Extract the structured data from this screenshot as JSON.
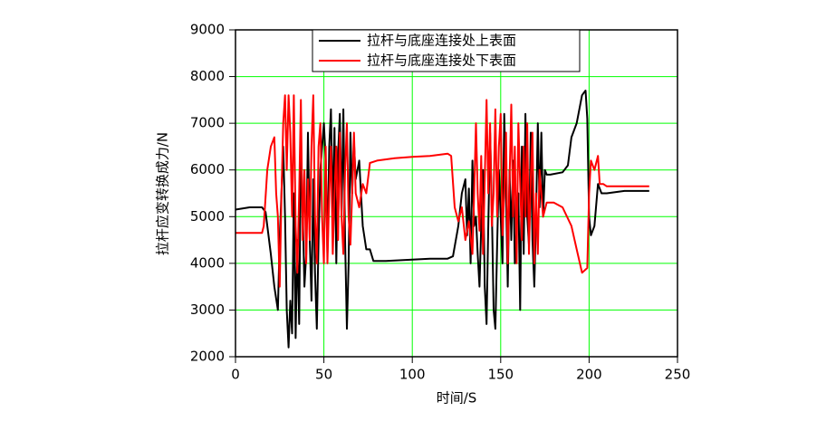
{
  "chart_data": {
    "type": "line",
    "xlabel": "时间/S",
    "ylabel": "拉杆应变转换成力/N",
    "xlim": [
      0,
      250
    ],
    "xticks": [
      0,
      50,
      100,
      150,
      200,
      250
    ],
    "ylim": [
      2000,
      9000
    ],
    "yticks": [
      2000,
      3000,
      4000,
      5000,
      6000,
      7000,
      8000,
      9000
    ],
    "grid": true,
    "grid_color": "#00ff00",
    "legend": "top",
    "series": [
      {
        "name": "拉杆与底座连接处上表面",
        "color": "#000000",
        "x": [
          0,
          8,
          15,
          17,
          20,
          22,
          24,
          25,
          27,
          28,
          29,
          30,
          31,
          32,
          33,
          34,
          35,
          36,
          37,
          38,
          39,
          40,
          41,
          42,
          43,
          44,
          45,
          46,
          47,
          48,
          50,
          51,
          52,
          53,
          54,
          55,
          56,
          57,
          58,
          59,
          60,
          61,
          62,
          63,
          64,
          65,
          66,
          67,
          68,
          70,
          72,
          74,
          76,
          78,
          85,
          100,
          110,
          120,
          123,
          126,
          128,
          130,
          131,
          132,
          133,
          134,
          135,
          136,
          137,
          138,
          139,
          140,
          141,
          142,
          143,
          144,
          145,
          146,
          147,
          148,
          149,
          150,
          151,
          152,
          153,
          154,
          155,
          156,
          157,
          158,
          160,
          161,
          162,
          163,
          164,
          165,
          166,
          167,
          168,
          169,
          170,
          171,
          172,
          173,
          174,
          175,
          176,
          178,
          185,
          188,
          190,
          193,
          196,
          198,
          199,
          200,
          201,
          203,
          205,
          207,
          210,
          220,
          234
        ],
        "values": [
          5150,
          5200,
          5200,
          5100,
          4200,
          3500,
          3000,
          4500,
          6500,
          5000,
          3000,
          2200,
          3200,
          2500,
          5500,
          2400,
          4500,
          2700,
          6500,
          5200,
          3500,
          4200,
          6800,
          4500,
          3200,
          5800,
          3800,
          2600,
          4500,
          6000,
          7000,
          6200,
          4200,
          6500,
          7300,
          5000,
          6900,
          4000,
          6300,
          7200,
          5000,
          7300,
          4500,
          2600,
          4000,
          6800,
          5500,
          6600,
          5800,
          6200,
          4800,
          4300,
          4300,
          4050,
          4050,
          4080,
          4100,
          4100,
          4150,
          4800,
          5500,
          5800,
          4600,
          5600,
          4000,
          6200,
          4800,
          5000,
          4200,
          3500,
          4800,
          6000,
          3500,
          2700,
          4800,
          6800,
          5200,
          3000,
          2600,
          4400,
          6000,
          5000,
          4000,
          7200,
          5500,
          3500,
          6000,
          4500,
          6200,
          4000,
          5500,
          3000,
          6500,
          4200,
          7200,
          5000,
          4400,
          6800,
          4500,
          3500,
          5000,
          7000,
          5200,
          6800,
          5000,
          6000,
          5900,
          5900,
          5950,
          6100,
          6700,
          7000,
          7600,
          7700,
          7100,
          5000,
          4600,
          4800,
          5700,
          5500,
          5500,
          5550,
          5550
        ]
      },
      {
        "name": "拉杆与底座连接处下表面",
        "color": "#ff0000",
        "x": [
          0,
          8,
          15,
          16,
          18,
          20,
          22,
          23,
          24,
          25,
          26,
          27,
          28,
          29,
          30,
          31,
          32,
          33,
          34,
          35,
          36,
          37,
          38,
          39,
          40,
          41,
          42,
          43,
          44,
          45,
          46,
          47,
          48,
          49,
          50,
          51,
          52,
          53,
          54,
          55,
          56,
          57,
          58,
          59,
          60,
          61,
          62,
          63,
          64,
          65,
          66,
          67,
          68,
          70,
          72,
          74,
          76,
          80,
          90,
          100,
          110,
          120,
          122,
          124,
          126,
          128,
          130,
          132,
          134,
          135,
          136,
          137,
          138,
          139,
          140,
          141,
          142,
          143,
          144,
          145,
          146,
          147,
          148,
          149,
          150,
          151,
          152,
          153,
          154,
          155,
          156,
          157,
          158,
          159,
          160,
          162,
          163,
          164,
          165,
          166,
          167,
          168,
          169,
          170,
          171,
          172,
          174,
          176,
          180,
          185,
          190,
          193,
          196,
          199,
          200,
          201,
          203,
          205,
          206,
          208,
          210,
          220,
          234
        ],
        "values": [
          4650,
          4650,
          4650,
          4800,
          6000,
          6500,
          6700,
          5500,
          5000,
          3500,
          5500,
          7000,
          7600,
          6000,
          7600,
          6800,
          5000,
          7600,
          4800,
          3800,
          5500,
          7500,
          4500,
          6000,
          4000,
          5800,
          4500,
          6500,
          7600,
          5000,
          4000,
          6500,
          7000,
          5000,
          4000,
          6500,
          4000,
          5500,
          6500,
          4200,
          5500,
          6500,
          4500,
          6800,
          5000,
          4200,
          6000,
          7000,
          5000,
          4400,
          5500,
          6800,
          5500,
          5200,
          5700,
          5500,
          6150,
          6200,
          6250,
          6280,
          6300,
          6350,
          6300,
          5200,
          4900,
          5200,
          4500,
          4900,
          4200,
          5500,
          7000,
          5500,
          4700,
          6300,
          4200,
          5800,
          7500,
          5500,
          7000,
          4800,
          5500,
          7300,
          5000,
          6500,
          7200,
          4600,
          5500,
          6800,
          4000,
          5800,
          7400,
          5000,
          6500,
          4000,
          7000,
          4500,
          6500,
          5000,
          7000,
          4200,
          5800,
          6800,
          4000,
          5500,
          4200,
          6000,
          5000,
          5300,
          5300,
          5200,
          4800,
          4300,
          3800,
          3900,
          5500,
          6200,
          6000,
          6300,
          5700,
          5700,
          5650,
          5650,
          5650
        ]
      }
    ]
  }
}
